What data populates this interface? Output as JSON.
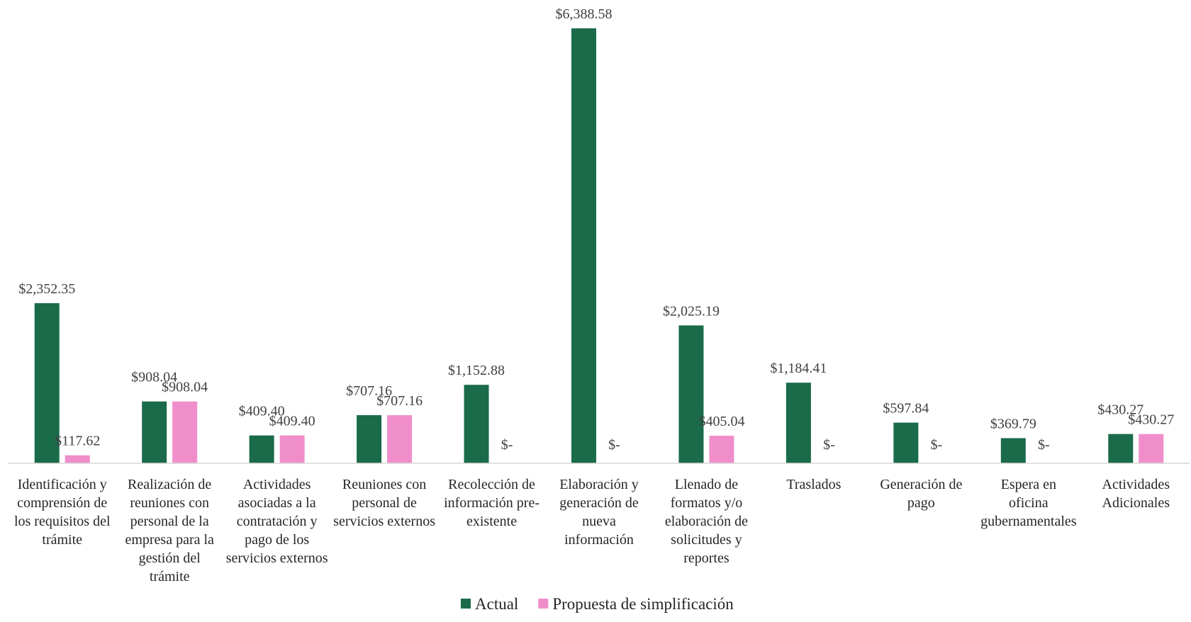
{
  "chart_data": {
    "type": "bar",
    "title": "",
    "xlabel": "",
    "ylabel": "",
    "ylim": [
      0,
      6388.58
    ],
    "grid": false,
    "legend_position": "bottom",
    "categories": [
      [
        "Identificación y",
        "comprensión de",
        "los requisitos del",
        "trámite"
      ],
      [
        "Realización de",
        "reuniones con",
        "personal de la",
        "empresa para la",
        "gestión del",
        "trámite"
      ],
      [
        "Actividades",
        "asociadas a la",
        "contratación y",
        "pago de los",
        "servicios externos"
      ],
      [
        "Reuniones con",
        "personal de",
        "servicios externos"
      ],
      [
        "Recolección de",
        "información pre-",
        "existente"
      ],
      [
        "Elaboración y",
        "generación de",
        "nueva",
        "información"
      ],
      [
        "Llenado de",
        "formatos y/o",
        "elaboración de",
        "solicitudes y",
        "reportes"
      ],
      [
        "Traslados"
      ],
      [
        "Generación de",
        "pago"
      ],
      [
        "Espera en",
        "oficina",
        "gubernamentales"
      ],
      [
        "Actividades",
        "Adicionales"
      ]
    ],
    "series": [
      {
        "name": "Actual",
        "color": "#1a6b4a",
        "values": [
          2352.35,
          908.04,
          409.4,
          707.16,
          1152.88,
          6388.58,
          2025.19,
          1184.41,
          597.84,
          369.79,
          430.27
        ],
        "labels": [
          "$2,352.35",
          "$908.04",
          "$409.40",
          "$707.16",
          "$1,152.88",
          "$6,388.58",
          "$2,025.19",
          "$1,184.41",
          "$597.84",
          "$369.79",
          "$430.27"
        ]
      },
      {
        "name": "Propuesta de simplificación",
        "color": "#f08ecb",
        "values": [
          117.62,
          908.04,
          409.4,
          707.16,
          0,
          0,
          405.04,
          0,
          0,
          0,
          430.27
        ],
        "labels": [
          "$117.62",
          "$908.04",
          "$409.40",
          "$707.16",
          "$-",
          "$-",
          "$405.04",
          "$-",
          "$-",
          "$-",
          "$430.27"
        ]
      }
    ]
  }
}
